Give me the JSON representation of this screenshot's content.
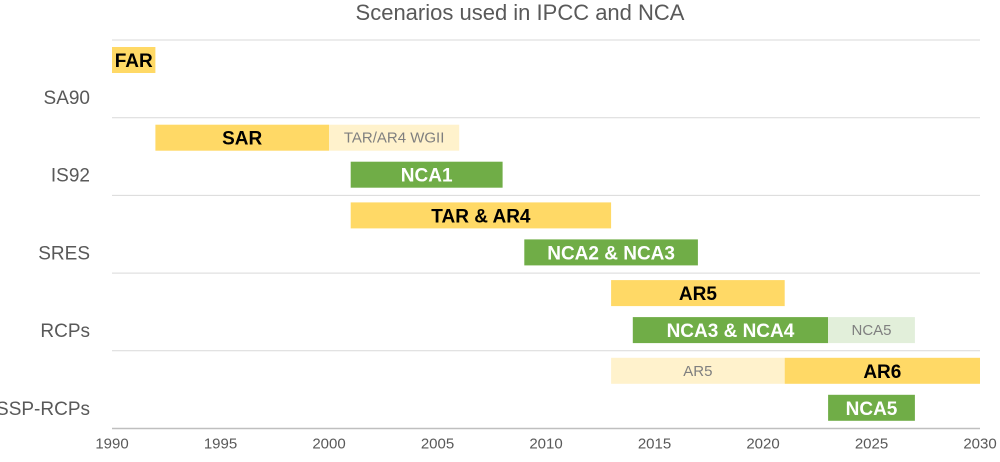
{
  "chart_data": {
    "type": "bar",
    "orientation": "horizontal-range",
    "title": "Scenarios used in IPCC and NCA",
    "xlabel": "",
    "ylabel": "",
    "xlim": [
      1990,
      2030
    ],
    "x_ticks": [
      "1990",
      "1995",
      "2000",
      "2005",
      "2010",
      "2015",
      "2020",
      "2025",
      "2030"
    ],
    "categories": [
      "SA90",
      "IS92",
      "SRES",
      "RCPs",
      "SSP-RCPs"
    ],
    "colors": {
      "ipcc": "#FFD966",
      "nca": "#70AD47",
      "ipcc_faded": "#FFF2CC",
      "nca_faded": "#E2EFDA",
      "text_dark": "#000000",
      "text_light": "#ffffff",
      "text_faded": "#7f7f7f",
      "grid": "#d9d9d9",
      "axis": "#bfbfbf"
    },
    "bars": [
      {
        "category": "SA90",
        "label": "FAR",
        "start": 1990,
        "end": 1992,
        "kind": "ipcc",
        "sub": 0
      },
      {
        "category": "IS92",
        "label": "SAR",
        "start": 1992,
        "end": 2000,
        "kind": "ipcc",
        "sub": 0
      },
      {
        "category": "IS92",
        "label": "TAR/AR4 WGII",
        "start": 2000,
        "end": 2006,
        "kind": "ipcc_faded",
        "sub": 0
      },
      {
        "category": "IS92",
        "label": "NCA1",
        "start": 2001,
        "end": 2008,
        "kind": "nca",
        "sub": 1
      },
      {
        "category": "SRES",
        "label": "TAR & AR4",
        "start": 2001,
        "end": 2013,
        "kind": "ipcc",
        "sub": 0
      },
      {
        "category": "SRES",
        "label": "NCA2 & NCA3",
        "start": 2009,
        "end": 2017,
        "kind": "nca",
        "sub": 1
      },
      {
        "category": "RCPs",
        "label": "AR5",
        "start": 2013,
        "end": 2021,
        "kind": "ipcc",
        "sub": 0
      },
      {
        "category": "RCPs",
        "label": "NCA3 & NCA4",
        "start": 2014,
        "end": 2023,
        "kind": "nca",
        "sub": 1
      },
      {
        "category": "RCPs",
        "label": "NCA5",
        "start": 2023,
        "end": 2027,
        "kind": "nca_faded",
        "sub": 1
      },
      {
        "category": "SSP-RCPs",
        "label": "AR5",
        "start": 2013,
        "end": 2021,
        "kind": "ipcc_faded",
        "sub": 0
      },
      {
        "category": "SSP-RCPs",
        "label": "AR6",
        "start": 2021,
        "end": 2030,
        "kind": "ipcc",
        "sub": 0
      },
      {
        "category": "SSP-RCPs",
        "label": "NCA5",
        "start": 2023,
        "end": 2027,
        "kind": "nca",
        "sub": 1
      }
    ],
    "grid": true,
    "legend": "none"
  }
}
